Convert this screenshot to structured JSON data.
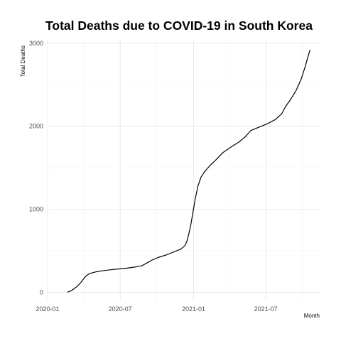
{
  "chart_data": {
    "type": "line",
    "title": "Total Deaths due to COVID-19 in South Korea",
    "xlabel": "Month",
    "ylabel": "Total Deaths",
    "x_ticks": [
      "2020-01",
      "2020-07",
      "2021-01",
      "2021-07"
    ],
    "y_ticks": [
      0,
      1000,
      2000,
      3000
    ],
    "xlim": [
      "2020-01-01",
      "2021-11-15"
    ],
    "ylim": [
      -100,
      3050
    ],
    "grid": true,
    "series": [
      {
        "color": "#000000",
        "points": [
          [
            "2020-02-20",
            0
          ],
          [
            "2020-03-01",
            20
          ],
          [
            "2020-03-15",
            70
          ],
          [
            "2020-03-25",
            120
          ],
          [
            "2020-04-05",
            190
          ],
          [
            "2020-04-15",
            225
          ],
          [
            "2020-05-01",
            245
          ],
          [
            "2020-05-20",
            260
          ],
          [
            "2020-06-15",
            275
          ],
          [
            "2020-07-10",
            285
          ],
          [
            "2020-07-25",
            295
          ],
          [
            "2020-08-10",
            305
          ],
          [
            "2020-08-25",
            320
          ],
          [
            "2020-09-05",
            350
          ],
          [
            "2020-09-20",
            390
          ],
          [
            "2020-10-05",
            420
          ],
          [
            "2020-10-25",
            450
          ],
          [
            "2020-11-15",
            490
          ],
          [
            "2020-11-30",
            520
          ],
          [
            "2020-12-10",
            560
          ],
          [
            "2020-12-15",
            610
          ],
          [
            "2020-12-20",
            700
          ],
          [
            "2020-12-25",
            810
          ],
          [
            "2020-12-30",
            950
          ],
          [
            "2021-01-05",
            1120
          ],
          [
            "2021-01-12",
            1280
          ],
          [
            "2021-01-20",
            1390
          ],
          [
            "2021-01-30",
            1460
          ],
          [
            "2021-02-10",
            1520
          ],
          [
            "2021-02-25",
            1590
          ],
          [
            "2021-03-15",
            1680
          ],
          [
            "2021-04-05",
            1750
          ],
          [
            "2021-04-25",
            1810
          ],
          [
            "2021-05-10",
            1870
          ],
          [
            "2021-05-25",
            1950
          ],
          [
            "2021-06-15",
            1990
          ],
          [
            "2021-07-05",
            2030
          ],
          [
            "2021-07-25",
            2080
          ],
          [
            "2021-08-10",
            2150
          ],
          [
            "2021-08-20",
            2240
          ],
          [
            "2021-09-01",
            2320
          ],
          [
            "2021-09-15",
            2430
          ],
          [
            "2021-09-28",
            2570
          ],
          [
            "2021-10-08",
            2720
          ],
          [
            "2021-10-15",
            2840
          ],
          [
            "2021-10-20",
            2920
          ]
        ]
      }
    ]
  }
}
